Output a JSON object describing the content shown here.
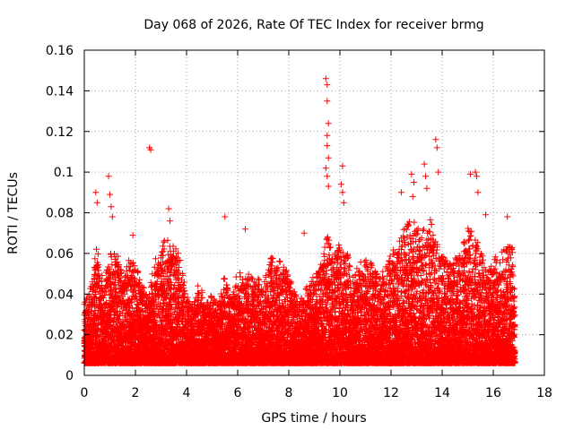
{
  "chart_data": {
    "type": "scatter",
    "title": "Day 068 of 2026, Rate Of TEC Index for receiver brmg",
    "xlabel": "GPS time / hours",
    "ylabel": "ROTI / TECUs",
    "xlim": [
      0,
      18
    ],
    "ylim": [
      0,
      0.16
    ],
    "x_ticks": [
      "0",
      "2",
      "4",
      "6",
      "8",
      "10",
      "12",
      "14",
      "16",
      "18"
    ],
    "y_ticks": [
      "0",
      "0.02",
      "0.04",
      "0.06",
      "0.08",
      "0.1",
      "0.12",
      "0.14",
      "0.16"
    ],
    "grid": true,
    "marker": "+",
    "color": "#ff0000",
    "series": [
      {
        "name": "ROTI",
        "points": [
          [
            0.45,
            0.09
          ],
          [
            0.5,
            0.085
          ],
          [
            0.95,
            0.098
          ],
          [
            1.0,
            0.089
          ],
          [
            1.05,
            0.083
          ],
          [
            1.1,
            0.078
          ],
          [
            1.9,
            0.069
          ],
          [
            2.55,
            0.112
          ],
          [
            2.6,
            0.111
          ],
          [
            3.3,
            0.082
          ],
          [
            3.35,
            0.076
          ],
          [
            5.5,
            0.078
          ],
          [
            6.3,
            0.072
          ],
          [
            8.6,
            0.07
          ],
          [
            9.45,
            0.146
          ],
          [
            9.5,
            0.143
          ],
          [
            9.5,
            0.135
          ],
          [
            9.55,
            0.124
          ],
          [
            9.5,
            0.118
          ],
          [
            9.5,
            0.113
          ],
          [
            9.55,
            0.107
          ],
          [
            9.45,
            0.102
          ],
          [
            9.5,
            0.098
          ],
          [
            9.55,
            0.093
          ],
          [
            10.1,
            0.103
          ],
          [
            10.05,
            0.094
          ],
          [
            10.1,
            0.09
          ],
          [
            10.15,
            0.085
          ],
          [
            12.4,
            0.09
          ],
          [
            12.8,
            0.099
          ],
          [
            12.9,
            0.095
          ],
          [
            12.85,
            0.088
          ],
          [
            13.3,
            0.104
          ],
          [
            13.35,
            0.098
          ],
          [
            13.4,
            0.092
          ],
          [
            13.75,
            0.116
          ],
          [
            13.8,
            0.112
          ],
          [
            13.85,
            0.1
          ],
          [
            15.1,
            0.099
          ],
          [
            15.3,
            0.1
          ],
          [
            15.35,
            0.098
          ],
          [
            15.4,
            0.09
          ],
          [
            15.7,
            0.079
          ],
          [
            16.55,
            0.078
          ]
        ],
        "envelope": [
          [
            0.0,
            0.035
          ],
          [
            0.25,
            0.045
          ],
          [
            0.5,
            0.065
          ],
          [
            0.75,
            0.05
          ],
          [
            1.0,
            0.06
          ],
          [
            1.25,
            0.063
          ],
          [
            1.5,
            0.05
          ],
          [
            1.75,
            0.058
          ],
          [
            2.0,
            0.055
          ],
          [
            2.25,
            0.045
          ],
          [
            2.5,
            0.04
          ],
          [
            2.75,
            0.058
          ],
          [
            3.0,
            0.062
          ],
          [
            3.25,
            0.07
          ],
          [
            3.5,
            0.065
          ],
          [
            3.75,
            0.058
          ],
          [
            4.0,
            0.04
          ],
          [
            4.25,
            0.035
          ],
          [
            4.5,
            0.047
          ],
          [
            4.75,
            0.035
          ],
          [
            5.0,
            0.04
          ],
          [
            5.25,
            0.035
          ],
          [
            5.5,
            0.05
          ],
          [
            5.75,
            0.042
          ],
          [
            6.0,
            0.052
          ],
          [
            6.25,
            0.055
          ],
          [
            6.5,
            0.048
          ],
          [
            6.75,
            0.05
          ],
          [
            7.0,
            0.045
          ],
          [
            7.25,
            0.06
          ],
          [
            7.5,
            0.055
          ],
          [
            7.75,
            0.058
          ],
          [
            8.0,
            0.05
          ],
          [
            8.25,
            0.04
          ],
          [
            8.5,
            0.038
          ],
          [
            8.75,
            0.045
          ],
          [
            9.0,
            0.05
          ],
          [
            9.25,
            0.055
          ],
          [
            9.5,
            0.07
          ],
          [
            9.75,
            0.06
          ],
          [
            10.0,
            0.065
          ],
          [
            10.25,
            0.062
          ],
          [
            10.5,
            0.05
          ],
          [
            10.75,
            0.055
          ],
          [
            11.0,
            0.058
          ],
          [
            11.25,
            0.055
          ],
          [
            11.5,
            0.05
          ],
          [
            11.75,
            0.052
          ],
          [
            12.0,
            0.06
          ],
          [
            12.25,
            0.065
          ],
          [
            12.5,
            0.072
          ],
          [
            12.75,
            0.078
          ],
          [
            13.0,
            0.075
          ],
          [
            13.25,
            0.072
          ],
          [
            13.5,
            0.078
          ],
          [
            13.75,
            0.07
          ],
          [
            14.0,
            0.06
          ],
          [
            14.25,
            0.055
          ],
          [
            14.5,
            0.058
          ],
          [
            14.75,
            0.06
          ],
          [
            15.0,
            0.075
          ],
          [
            15.25,
            0.07
          ],
          [
            15.5,
            0.065
          ],
          [
            15.75,
            0.05
          ],
          [
            16.0,
            0.058
          ],
          [
            16.25,
            0.06
          ],
          [
            16.5,
            0.063
          ],
          [
            16.75,
            0.065
          ],
          [
            16.85,
            0.035
          ]
        ],
        "baseline": 0.006,
        "density": "dense"
      }
    ]
  }
}
